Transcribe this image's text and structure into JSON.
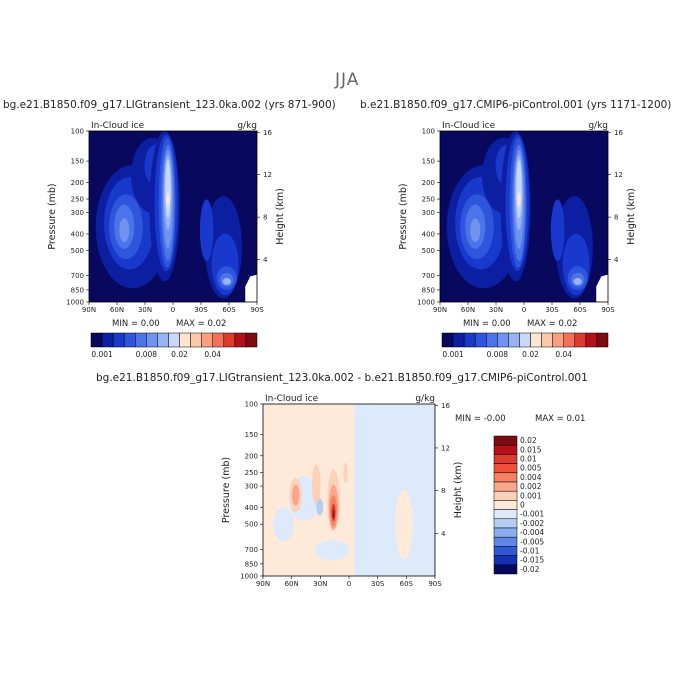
{
  "figure": {
    "title": "JJA"
  },
  "chart_data": [
    {
      "type": "heatmap",
      "title": "bg.e21.B1850.f09_g17.LIGtransient_123.0ka.002 (yrs 871-900)",
      "variable": "In-Cloud ice",
      "units": "g/kg",
      "xlabel": "",
      "ylabel": "Pressure (mb)",
      "y2label": "Height (km)",
      "x_ticks": [
        "90N",
        "60N",
        "30N",
        "0",
        "30S",
        "60S",
        "90S"
      ],
      "y_ticks": [
        100,
        150,
        200,
        250,
        300,
        400,
        500,
        700,
        850,
        1000
      ],
      "y2_ticks": [
        4,
        8,
        12,
        16
      ],
      "min_label": "MIN =    0.00",
      "max_label": "MAX =    0.02",
      "colorbar_labels": [
        "0.001",
        "0.008",
        "0.02",
        "0.04"
      ],
      "colorbar_colors": [
        "#08085e",
        "#0c1fa3",
        "#1839cc",
        "#2e56dc",
        "#4c73e8",
        "#6f93ef",
        "#98b3f5",
        "#c8d8fb",
        "#ffe4d2",
        "#fdc7a8",
        "#f9a07f",
        "#f27259",
        "#dd3a30",
        "#b5101a",
        "#7d0a10"
      ]
    },
    {
      "type": "heatmap",
      "title": "b.e21.B1850.f09_g17.CMIP6-piControl.001 (yrs 1171-1200)",
      "variable": "In-Cloud ice",
      "units": "g/kg",
      "xlabel": "",
      "ylabel": "Pressure (mb)",
      "y2label": "Height (km)",
      "x_ticks": [
        "90N",
        "60N",
        "30N",
        "0",
        "30S",
        "60S",
        "90S"
      ],
      "y_ticks": [
        100,
        150,
        200,
        250,
        300,
        400,
        500,
        700,
        850,
        1000
      ],
      "y2_ticks": [
        4,
        8,
        12,
        16
      ],
      "min_label": "MIN =    0.00",
      "max_label": "MAX =    0.02",
      "colorbar_labels": [
        "0.001",
        "0.008",
        "0.02",
        "0.04"
      ],
      "colorbar_colors": [
        "#08085e",
        "#0c1fa3",
        "#1839cc",
        "#2e56dc",
        "#4c73e8",
        "#6f93ef",
        "#98b3f5",
        "#c8d8fb",
        "#ffe4d2",
        "#fdc7a8",
        "#f9a07f",
        "#f27259",
        "#dd3a30",
        "#b5101a",
        "#7d0a10"
      ]
    },
    {
      "type": "heatmap",
      "title": "bg.e21.B1850.f09_g17.LIGtransient_123.0ka.002 - b.e21.B1850.f09_g17.CMIP6-piControl.001",
      "variable": "In-Cloud ice",
      "units": "g/kg",
      "xlabel": "",
      "ylabel": "Pressure (mb)",
      "y2label": "Height (km)",
      "x_ticks": [
        "90N",
        "60N",
        "30N",
        "0",
        "30S",
        "60S",
        "90S"
      ],
      "y_ticks": [
        100,
        150,
        200,
        250,
        300,
        400,
        500,
        700,
        850,
        1000
      ],
      "y2_ticks": [
        4,
        8,
        12,
        16
      ],
      "min_label": "MIN =   -0.00",
      "max_label": "MAX =    0.01",
      "colorbar_labels": [
        "0.02",
        "0.015",
        "0.01",
        "0.005",
        "0.004",
        "0.002",
        "0.001",
        "0",
        "-0.001",
        "-0.002",
        "-0.004",
        "-0.005",
        "-0.01",
        "-0.015",
        "-0.02"
      ],
      "colorbar_colors": [
        "#7d0a10",
        "#b5101a",
        "#dd3a30",
        "#f04f38",
        "#f6805f",
        "#f9a689",
        "#fdd1b8",
        "#ffe9d9",
        "#ddeafb",
        "#b5cdf5",
        "#8cadef",
        "#5e86e4",
        "#3058d6",
        "#1330b5",
        "#08085e"
      ]
    }
  ]
}
